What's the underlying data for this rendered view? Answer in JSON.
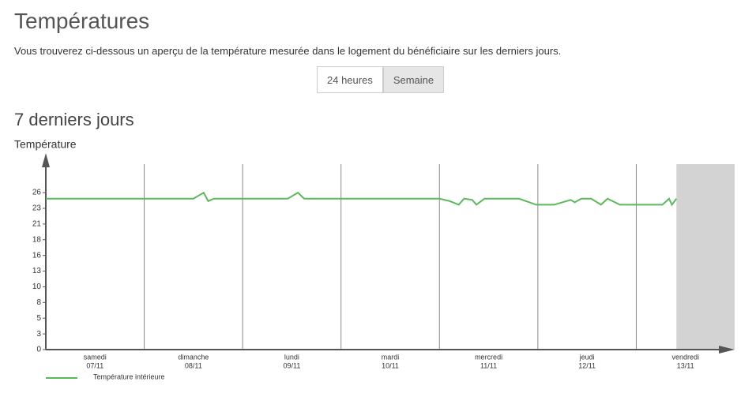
{
  "header": {
    "title": "Températures",
    "intro": "Vous trouverez ci-dessous un aperçu de la température mesurée dans le logement du bénéficiaire sur les derniers jours.",
    "buttons": [
      "24 heures",
      "Semaine"
    ],
    "active_button": 1,
    "subtitle": "7 derniers jours"
  },
  "chart_data": {
    "type": "line",
    "y_label": "Température",
    "categories": [
      "samedi",
      "dimanche",
      "lundi",
      "mardi",
      "mercredi",
      "jeudi",
      "vendredi"
    ],
    "dates": [
      "07/11",
      "08/11",
      "09/11",
      "10/11",
      "11/11",
      "12/11",
      "13/11"
    ],
    "xlim": [
      0,
      168
    ],
    "xticks": [
      24,
      48,
      72,
      96,
      120,
      144
    ],
    "ylim": [
      0,
      30
    ],
    "yticks": [
      0,
      {
        "value": 2.6,
        "label": "3"
      },
      {
        "value": 5.2,
        "label": "5"
      },
      {
        "value": 7.8,
        "label": "8"
      },
      {
        "value": 10.4,
        "label": "10"
      },
      13,
      {
        "value": 15.6,
        "label": "16"
      },
      {
        "value": 18.2,
        "label": "18"
      },
      {
        "value": 20.8,
        "label": "21"
      },
      {
        "value": 23.4,
        "label": "23"
      },
      26
    ],
    "grid": true,
    "series": [
      {
        "name": "Température intérieure",
        "color": "#5cb85c",
        "x": [
          0,
          36,
          38.5,
          39.6,
          41,
          59,
          61.5,
          63,
          96,
          98.5,
          100.7,
          102,
          104,
          105,
          107,
          115.4,
          119.6,
          124,
          128,
          129,
          130.6,
          133,
          135.4,
          137,
          140,
          150.4,
          152,
          152.7,
          153.8
        ],
        "values": [
          25,
          25,
          26,
          24.6,
          25,
          25,
          26,
          25,
          25,
          24.6,
          24,
          25,
          24.8,
          24,
          25,
          25,
          24,
          24,
          24.8,
          24.4,
          25,
          25,
          24,
          25,
          24,
          24,
          25,
          24,
          25
        ]
      }
    ]
  }
}
